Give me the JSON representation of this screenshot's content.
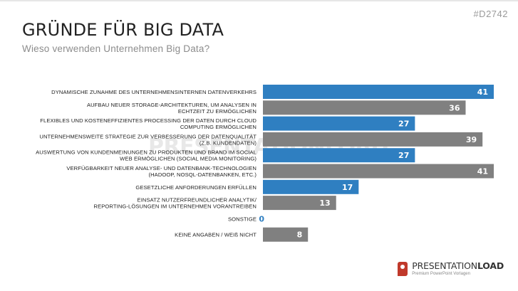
{
  "slide_id": "#D2742",
  "title": "GRÜNDE FÜR BIG DATA",
  "subtitle": "Wieso verwenden Unternehmen Big Data?",
  "watermark": "PRESENTATIONLOAD",
  "logo": {
    "name_light": "PRESENTATION",
    "name_bold": "LOAD",
    "tagline": "Premium PowerPoint Vorlagen"
  },
  "colors": {
    "blue": "#2f7fc1",
    "gray": "#808080",
    "logo_red": "#c0392b"
  },
  "chart_data": {
    "type": "bar",
    "orientation": "horizontal",
    "xlim": [
      0,
      41
    ],
    "categories": [
      [
        "DYNAMISCHE ZUNAHME DES UNTERNEHMENSINTERNEN DATENVERKEHRS"
      ],
      [
        "AUFBAU NEUER STORAGE-ARCHITEKTUREN, UM ANALYSEN IN",
        "ECHTZEIT ZU ERMÖGLICHEN"
      ],
      [
        "FLEXIBLES UND KOSTENEFFIZIENTES PROCESSING DER DATEN DURCH CLOUD",
        "COMPUTING ERMÖGLICHEN"
      ],
      [
        "UNTERNEHMENSWEITE STRATEGIE ZUR VERBESSERUNG DER DATENQUALITÄT",
        "(Z.B. KUNDENDATEN)"
      ],
      [
        "AUSWERTUNG VON KUNDENMEINUNGEN ZU PRODUKTEN UND BRAND IM SOCIAL",
        "WEB ERMÖGLICHEN (SOCIAL MEDIA MONITORING)"
      ],
      [
        "VERFÜGBARKEIT NEUER ANALYSE- UND DATENBANK-TECHNOLOGIEN",
        "(HADOOP, NOSQL-DATENBANKEN, ETC.)"
      ],
      [
        "GESETZLICHE ANFORDERUNGEN ERFÜLLEN"
      ],
      [
        "EINSATZ NUTZERFREUNDLICHER ANALYTIK/",
        "REPORTING-LÖSUNGEN IM UNTERNEHMEN VORANTREIBEN"
      ],
      [
        "SONSTIGE"
      ],
      [
        "KEINE ANGABEN / WEIß NICHT"
      ]
    ],
    "values": [
      41,
      36,
      27,
      39,
      27,
      41,
      17,
      13,
      0,
      8
    ],
    "bar_colors": [
      "blue",
      "gray",
      "blue",
      "gray",
      "blue",
      "gray",
      "blue",
      "gray",
      "blue",
      "gray"
    ]
  }
}
